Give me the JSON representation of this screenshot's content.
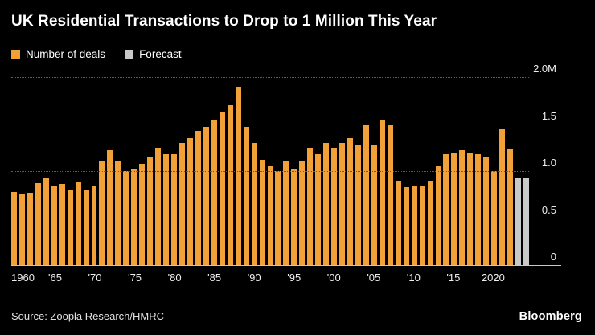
{
  "header": {
    "title": "UK Residential Transactions to Drop to 1 Million This Year"
  },
  "legend": {
    "items": [
      {
        "label": "Number of deals",
        "color": "#F1A138"
      },
      {
        "label": "Forecast",
        "color": "#C9C9C9"
      }
    ]
  },
  "chart_data": {
    "type": "bar",
    "title": "UK Residential Transactions to Drop to 1 Million This Year",
    "unit": "millions of transactions per year",
    "ylim": [
      0,
      2.0
    ],
    "grid": "dotted horizontal",
    "legend_position": "top-left",
    "yticks": [
      {
        "value": 2.0,
        "label": "2.0M"
      },
      {
        "value": 1.5,
        "label": "1.5"
      },
      {
        "value": 1.0,
        "label": "1.0"
      },
      {
        "value": 0.5,
        "label": "0.5"
      },
      {
        "value": 0,
        "label": "0"
      }
    ],
    "xticks": [
      {
        "year": 1960,
        "label": "1960"
      },
      {
        "year": 1965,
        "label": "'65"
      },
      {
        "year": 1970,
        "label": "'70"
      },
      {
        "year": 1975,
        "label": "'75"
      },
      {
        "year": 1980,
        "label": "'80"
      },
      {
        "year": 1985,
        "label": "'85"
      },
      {
        "year": 1990,
        "label": "'90"
      },
      {
        "year": 1995,
        "label": "'95"
      },
      {
        "year": 2000,
        "label": "'00"
      },
      {
        "year": 2005,
        "label": "'05"
      },
      {
        "year": 2010,
        "label": "'10"
      },
      {
        "year": 2015,
        "label": "'15"
      },
      {
        "year": 2020,
        "label": "2020"
      }
    ],
    "series": [
      {
        "name": "Number of deals",
        "color": "#F1A138",
        "points": [
          [
            1960,
            0.78
          ],
          [
            1961,
            0.76
          ],
          [
            1962,
            0.77
          ],
          [
            1963,
            0.87
          ],
          [
            1964,
            0.92
          ],
          [
            1965,
            0.85
          ],
          [
            1966,
            0.86
          ],
          [
            1967,
            0.8
          ],
          [
            1968,
            0.88
          ],
          [
            1969,
            0.8
          ],
          [
            1970,
            0.85
          ],
          [
            1971,
            1.1
          ],
          [
            1972,
            1.22
          ],
          [
            1973,
            1.1
          ],
          [
            1974,
            1.0
          ],
          [
            1975,
            1.03
          ],
          [
            1976,
            1.08
          ],
          [
            1977,
            1.15
          ],
          [
            1978,
            1.25
          ],
          [
            1979,
            1.18
          ],
          [
            1980,
            1.18
          ],
          [
            1981,
            1.3
          ],
          [
            1982,
            1.35
          ],
          [
            1983,
            1.43
          ],
          [
            1984,
            1.47
          ],
          [
            1985,
            1.55
          ],
          [
            1986,
            1.62
          ],
          [
            1987,
            1.7
          ],
          [
            1988,
            1.9
          ],
          [
            1989,
            1.47
          ],
          [
            1990,
            1.3
          ],
          [
            1991,
            1.12
          ],
          [
            1992,
            1.05
          ],
          [
            1993,
            1.0
          ],
          [
            1994,
            1.1
          ],
          [
            1995,
            1.03
          ],
          [
            1996,
            1.1
          ],
          [
            1997,
            1.25
          ],
          [
            1998,
            1.18
          ],
          [
            1999,
            1.3
          ],
          [
            2000,
            1.25
          ],
          [
            2001,
            1.3
          ],
          [
            2002,
            1.35
          ],
          [
            2003,
            1.28
          ],
          [
            2004,
            1.5
          ],
          [
            2005,
            1.28
          ],
          [
            2006,
            1.55
          ],
          [
            2007,
            1.5
          ],
          [
            2008,
            0.9
          ],
          [
            2009,
            0.83
          ],
          [
            2010,
            0.85
          ],
          [
            2011,
            0.85
          ],
          [
            2012,
            0.9
          ],
          [
            2013,
            1.05
          ],
          [
            2014,
            1.18
          ],
          [
            2015,
            1.2
          ],
          [
            2016,
            1.22
          ],
          [
            2017,
            1.2
          ],
          [
            2018,
            1.18
          ],
          [
            2019,
            1.15
          ],
          [
            2020,
            1.0
          ],
          [
            2021,
            1.45
          ],
          [
            2022,
            1.23
          ]
        ]
      },
      {
        "name": "Forecast",
        "color": "#C9C9C9",
        "points": [
          [
            2023,
            0.93
          ],
          [
            2024,
            0.93
          ]
        ]
      }
    ]
  },
  "footer": {
    "source": "Source: Zoopla Research/HMRC",
    "brand": "Bloomberg"
  }
}
